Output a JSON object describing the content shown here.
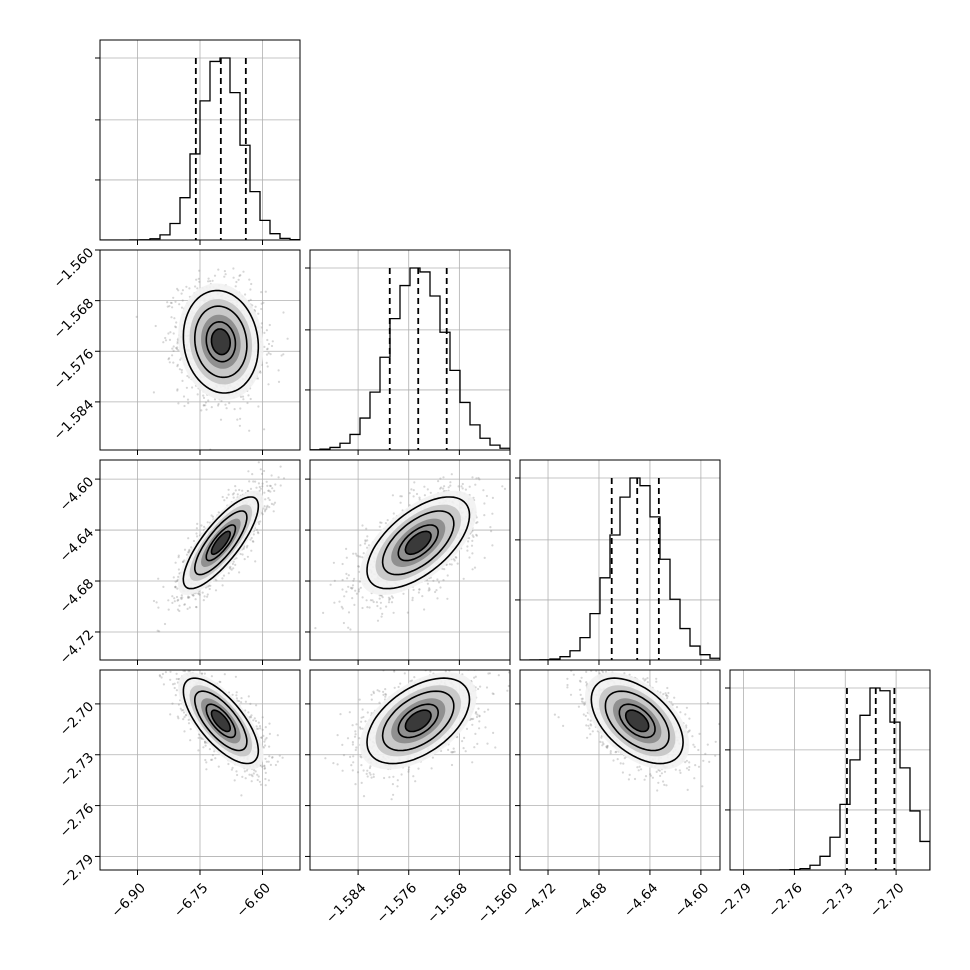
{
  "chart_data": {
    "type": "corner",
    "parameters": [
      {
        "index": 0,
        "mean": -6.7,
        "sd": 0.05,
        "range": [
          -6.99,
          -6.51
        ],
        "ticks": [
          -6.9,
          -6.75,
          -6.6
        ],
        "tick_labels": [
          "−6.90",
          "−6.75",
          "−6.60"
        ],
        "quantiles": [
          -6.76,
          -6.7,
          -6.64
        ]
      },
      {
        "index": 1,
        "mean": -1.5745,
        "sd": 0.0045,
        "range": [
          -1.5916,
          -1.56
        ],
        "ticks": [
          -1.584,
          -1.576,
          -1.568,
          -1.56
        ],
        "tick_labels": [
          "−1.584",
          "−1.576",
          "−1.568",
          "−1.560"
        ],
        "quantiles": [
          -1.579,
          -1.5745,
          -1.57
        ]
      },
      {
        "index": 2,
        "mean": -4.65,
        "sd": 0.02,
        "range": [
          -4.742,
          -4.585
        ],
        "ticks": [
          -4.72,
          -4.68,
          -4.64,
          -4.6
        ],
        "tick_labels": [
          "−4.72",
          "−4.68",
          "−4.64",
          "−4.60"
        ],
        "quantiles": [
          -4.67,
          -4.65,
          -4.633
        ]
      },
      {
        "index": 3,
        "mean": -2.71,
        "sd": 0.014,
        "range": [
          -2.798,
          -2.68
        ],
        "ticks": [
          -2.79,
          -2.76,
          -2.73,
          -2.7
        ],
        "tick_labels": [
          "−2.79",
          "−2.76",
          "−2.73",
          "−2.70"
        ],
        "quantiles": [
          -2.729,
          -2.712,
          -2.701
        ]
      }
    ],
    "correlations": [
      {
        "row": 1,
        "col": 0,
        "rho": -0.1
      },
      {
        "row": 2,
        "col": 0,
        "rho": 0.8
      },
      {
        "row": 2,
        "col": 1,
        "rho": 0.6
      },
      {
        "row": 3,
        "col": 0,
        "rho": -0.7
      },
      {
        "row": 3,
        "col": 1,
        "rho": 0.5
      },
      {
        "row": 3,
        "col": 2,
        "rho": -0.5
      }
    ],
    "grid": true,
    "histogram_bins": 20,
    "contour_levels": [
      "0.5",
      "1.0",
      "1.5",
      "2.0"
    ]
  }
}
